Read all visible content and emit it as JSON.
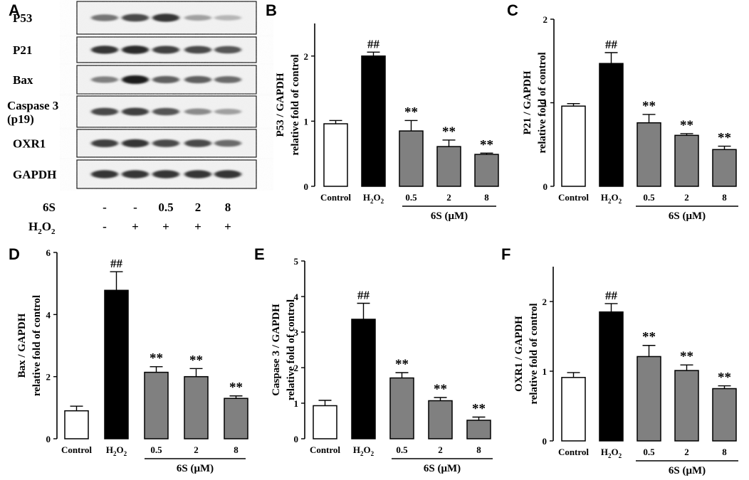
{
  "figure": {
    "panel_letters": [
      "A",
      "B",
      "C",
      "D",
      "E",
      "F"
    ]
  },
  "blot": {
    "letter": "A",
    "rows": [
      {
        "label": "P53",
        "intensities": [
          0.55,
          0.75,
          0.85,
          0.35,
          0.25
        ]
      },
      {
        "label": "P21",
        "intensities": [
          0.85,
          0.9,
          0.8,
          0.75,
          0.7
        ]
      },
      {
        "label": "Bax",
        "intensities": [
          0.5,
          0.95,
          0.65,
          0.65,
          0.6
        ]
      },
      {
        "label": "Caspase 3\n(p19)",
        "intensities": [
          0.75,
          0.8,
          0.7,
          0.45,
          0.35
        ]
      },
      {
        "label": "OXR1",
        "intensities": [
          0.8,
          0.85,
          0.75,
          0.75,
          0.6
        ]
      },
      {
        "label": "GAPDH",
        "intensities": [
          0.85,
          0.85,
          0.85,
          0.85,
          0.85
        ]
      }
    ],
    "treatment_rows": [
      {
        "label_main": "6S",
        "label_sub": "",
        "values": [
          "-",
          "-",
          "0.5",
          "2",
          "8"
        ]
      },
      {
        "label_main": "H",
        "label_sub": "2",
        "label_tail": "O",
        "label_sub2": "2",
        "values": [
          "-",
          "+",
          "+",
          "+",
          "+"
        ]
      }
    ]
  },
  "chart_data": [
    {
      "panel": "B",
      "type": "bar",
      "categories": [
        "Control",
        "H2O2",
        "0.5",
        "2",
        "8"
      ],
      "values": [
        0.96,
        2.0,
        0.85,
        0.61,
        0.49
      ],
      "errors": [
        0.05,
        0.06,
        0.16,
        0.1,
        0.02
      ],
      "annotations": [
        "",
        "##",
        "**",
        "**",
        "**"
      ],
      "ylabel": [
        "P53 / GAPDH",
        "relative fold of control"
      ],
      "yticks": [
        0,
        1,
        2
      ],
      "ylim": [
        0,
        2.5
      ],
      "group_label": "6S (μM)",
      "colors": [
        "#ffffff",
        "#000000",
        "#808080",
        "#808080",
        "#808080"
      ]
    },
    {
      "panel": "C",
      "type": "bar",
      "categories": [
        "Control",
        "H2O2",
        "0.5",
        "2",
        "8"
      ],
      "values": [
        0.96,
        1.47,
        0.76,
        0.61,
        0.44
      ],
      "errors": [
        0.03,
        0.13,
        0.1,
        0.02,
        0.04
      ],
      "annotations": [
        "",
        "##",
        "**",
        "**",
        "**"
      ],
      "ylabel": [
        "P21 / GAPDH",
        "relative fold of control"
      ],
      "yticks": [
        0,
        1,
        2
      ],
      "ylim": [
        0,
        2
      ],
      "group_label": "6S (μM)",
      "colors": [
        "#ffffff",
        "#000000",
        "#808080",
        "#808080",
        "#808080"
      ]
    },
    {
      "panel": "D",
      "type": "bar",
      "categories": [
        "Control",
        "H2O2",
        "0.5",
        "2",
        "8"
      ],
      "values": [
        0.9,
        4.78,
        2.14,
        2.0,
        1.3
      ],
      "errors": [
        0.15,
        0.6,
        0.18,
        0.26,
        0.08
      ],
      "annotations": [
        "",
        "##",
        "**",
        "**",
        "**"
      ],
      "ylabel": [
        "Bax / GAPDH",
        "relative fold of control"
      ],
      "yticks": [
        0,
        2,
        4,
        6
      ],
      "ylim": [
        0,
        6
      ],
      "group_label": "6S (μM)",
      "colors": [
        "#ffffff",
        "#000000",
        "#808080",
        "#808080",
        "#808080"
      ]
    },
    {
      "panel": "E",
      "type": "bar",
      "categories": [
        "Control",
        "H2O2",
        "0.5",
        "2",
        "8"
      ],
      "values": [
        0.93,
        3.36,
        1.71,
        1.07,
        0.52
      ],
      "errors": [
        0.15,
        0.45,
        0.15,
        0.09,
        0.09
      ],
      "annotations": [
        "",
        "##",
        "**",
        "**",
        "**"
      ],
      "ylabel": [
        "Caspase 3 / GAPDH",
        "relative fold of control"
      ],
      "yticks": [
        0,
        1,
        2,
        3,
        4,
        5
      ],
      "ylim": [
        0,
        5
      ],
      "group_label": "6S (μM)",
      "colors": [
        "#ffffff",
        "#000000",
        "#808080",
        "#808080",
        "#808080"
      ]
    },
    {
      "panel": "F",
      "type": "bar",
      "categories": [
        "Control",
        "H2O2",
        "0.5",
        "2",
        "8"
      ],
      "values": [
        0.91,
        1.85,
        1.21,
        1.01,
        0.75
      ],
      "errors": [
        0.07,
        0.12,
        0.16,
        0.08,
        0.04
      ],
      "annotations": [
        "",
        "##",
        "**",
        "**",
        "**"
      ],
      "ylabel": [
        "OXR1 / GAPDH",
        "relative fold of control"
      ],
      "yticks": [
        0,
        1,
        2
      ],
      "ylim": [
        0,
        2.5
      ],
      "group_label": "6S (μM)",
      "colors": [
        "#ffffff",
        "#000000",
        "#808080",
        "#808080",
        "#808080"
      ]
    }
  ]
}
